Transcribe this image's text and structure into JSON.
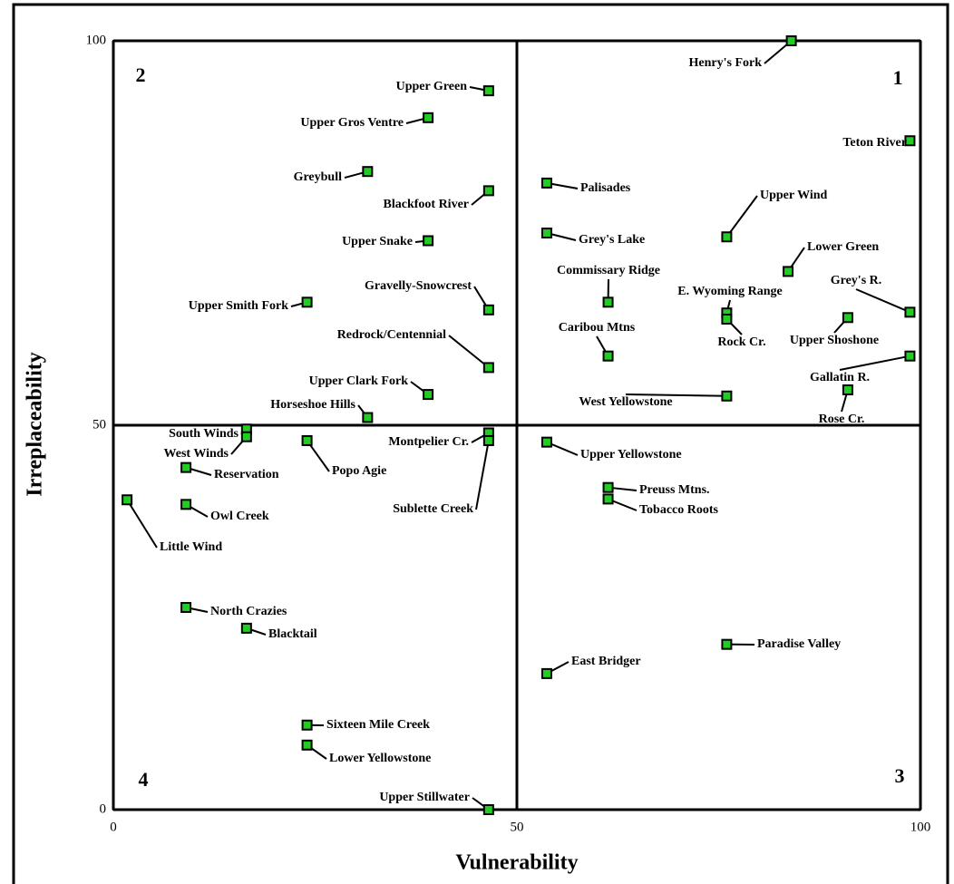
{
  "chart_data": {
    "type": "scatter",
    "x_label": "Vulnerability",
    "y_label": "Irreplaceability",
    "xlim": [
      0,
      100
    ],
    "ylim": [
      0,
      100
    ],
    "xticks": [
      0,
      50,
      100
    ],
    "yticks": [
      0,
      50,
      100
    ],
    "annotations": [
      "1",
      "2",
      "3",
      "4"
    ],
    "color": "#22cc22",
    "labels": [
      "Henry's Fork",
      "Upper Green",
      "Upper Gros Ventre",
      "Greybull",
      "Blackfoot River",
      "Upper Snake",
      "Gravelly-Snowcrest",
      "Upper Smith Fork",
      "Redrock/Centennial",
      "Upper Clark Fork",
      "Horseshoe Hills",
      "South Winds",
      "West Winds",
      "Reservation",
      "Popo Agie",
      "Montpelier Cr.",
      "Sublette Creek",
      "Owl Creek",
      "Little Wind",
      "North Crazies",
      "Blacktail",
      "Sixteen Mile Creek",
      "Lower Yellowstone",
      "Upper Stillwater",
      "Palisades",
      "Grey's Lake",
      "Commissary Ridge",
      "Caribou Mtns",
      "Upper Wind",
      "Lower Green",
      "E. Wyoming Range",
      "Rock Cr.",
      "Grey's R.",
      "Upper Shoshone",
      "Teton River",
      "Gallatin R.",
      "Rose Cr.",
      "West Yellowstone",
      "Upper Yellowstone",
      "Preuss Mtns.",
      "Tobacco Roots",
      "Paradise Valley",
      "East Bridger"
    ],
    "x": [
      84,
      46.5,
      39,
      31.5,
      46.5,
      39,
      46.5,
      24,
      46.5,
      39,
      31.5,
      16.5,
      16.5,
      9,
      24,
      46.5,
      46.5,
      9,
      1.7,
      9,
      16.5,
      24,
      24,
      46.5,
      53.7,
      53.7,
      61.3,
      61.3,
      76,
      83.6,
      76,
      76,
      98.7,
      91,
      98.7,
      98.7,
      91,
      76,
      53.7,
      61.3,
      61.3,
      76,
      53.7
    ],
    "values": [
      100,
      93.5,
      90,
      83,
      80.5,
      74,
      65,
      66,
      57.5,
      54,
      51,
      49.5,
      48.5,
      44.5,
      48,
      49,
      48,
      39.7,
      40.3,
      26.3,
      23.6,
      11,
      8.4,
      0,
      81.5,
      75,
      66,
      59,
      74.5,
      70,
      64.6,
      63.8,
      64.7,
      64,
      87,
      59,
      54.6,
      53.8,
      47.8,
      41.9,
      40.4,
      21.5,
      17.7
    ]
  }
}
